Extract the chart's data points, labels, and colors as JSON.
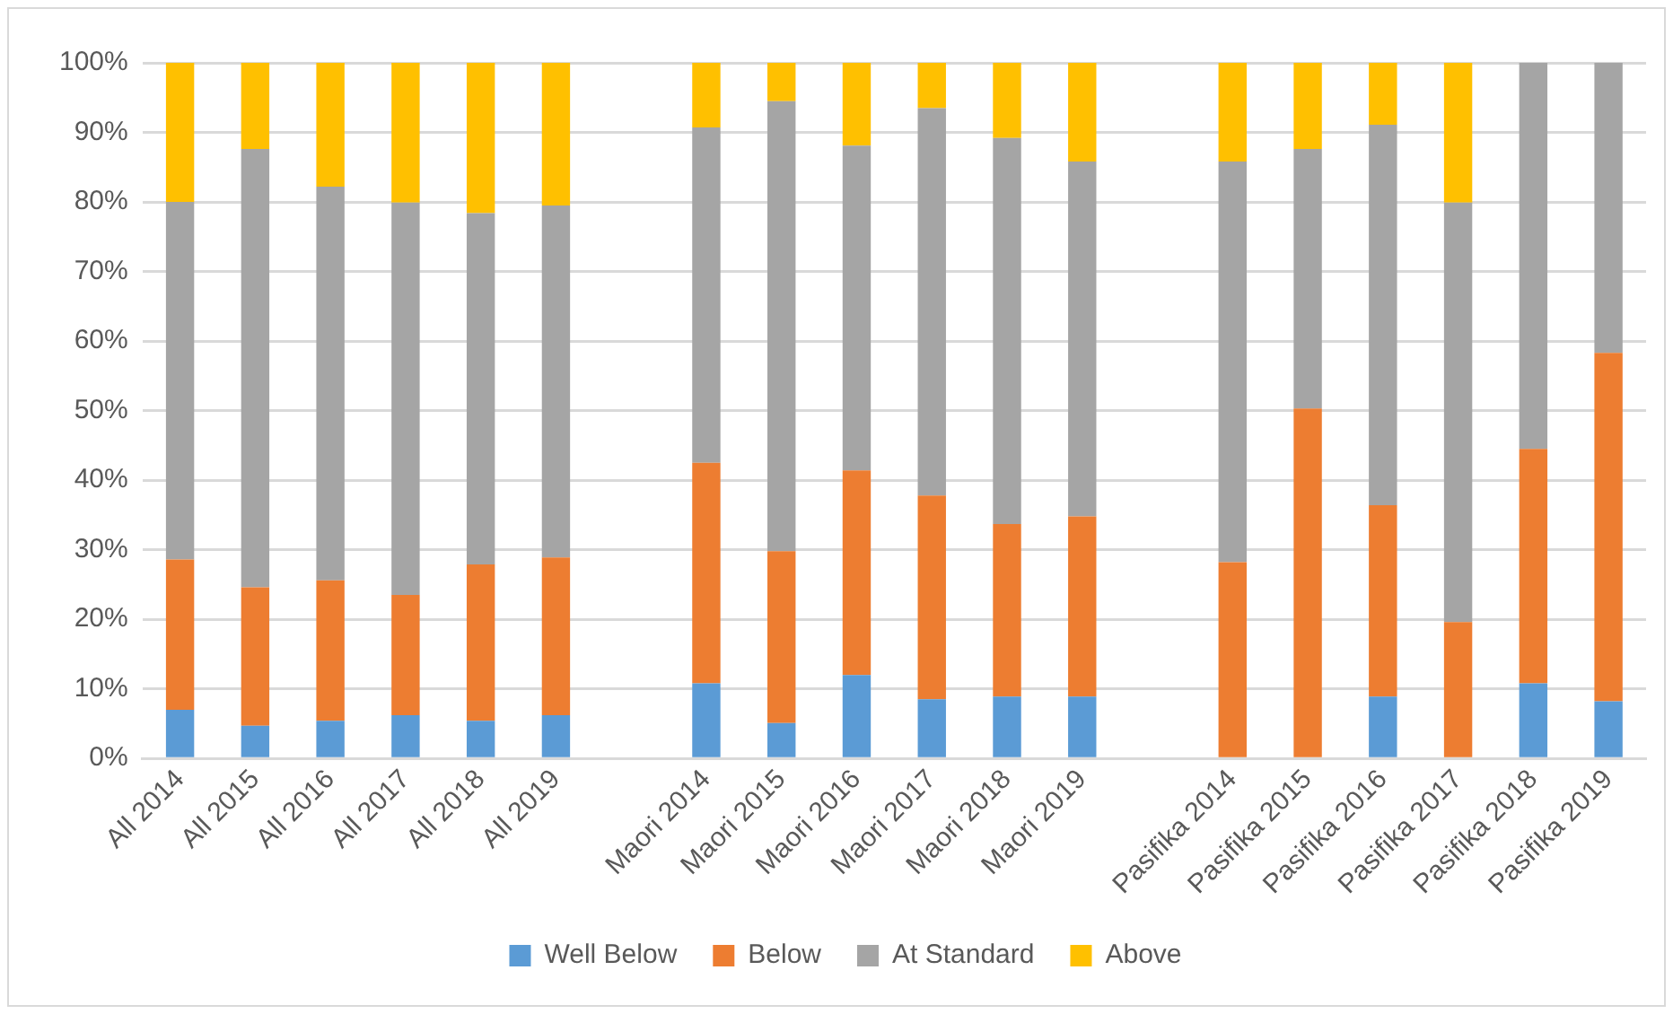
{
  "chart_data": {
    "type": "bar",
    "stacked": true,
    "categories": [
      "All 2014",
      "All 2015",
      "All 2016",
      "All 2017",
      "All 2018",
      "All 2019",
      null,
      "Maori 2014",
      "Maori 2015",
      "Maori 2016",
      "Maori 2017",
      "Maori 2018",
      "Maori 2019",
      null,
      "Pasifika 2014",
      "Pasifika 2015",
      "Pasifika 2016",
      "Pasifika 2017",
      "Pasifika 2018",
      "Pasifika 2019"
    ],
    "series": [
      {
        "name": "Well Below",
        "color": "#5b9bd5",
        "values": [
          7.0,
          4.7,
          5.4,
          6.2,
          5.4,
          6.2,
          null,
          10.8,
          5.1,
          12.0,
          8.5,
          8.9,
          8.9,
          null,
          0,
          0,
          8.9,
          0,
          10.8,
          8.2
        ]
      },
      {
        "name": "Below",
        "color": "#ed7d31",
        "values": [
          21.6,
          19.9,
          20.2,
          17.3,
          22.5,
          22.7,
          null,
          31.7,
          24.7,
          29.4,
          29.3,
          24.8,
          25.9,
          null,
          28.2,
          50.3,
          27.5,
          19.6,
          33.7,
          50.1
        ]
      },
      {
        "name": "At Standard",
        "color": "#a5a5a5",
        "values": [
          51.4,
          63.0,
          56.6,
          56.4,
          50.5,
          50.6,
          null,
          48.2,
          64.7,
          46.7,
          55.7,
          55.5,
          51.0,
          null,
          57.6,
          37.3,
          54.7,
          60.3,
          55.5,
          41.7
        ]
      },
      {
        "name": "Above",
        "color": "#ffc000",
        "values": [
          20.0,
          12.4,
          17.8,
          20.1,
          21.6,
          20.5,
          null,
          9.3,
          5.5,
          11.9,
          6.5,
          10.8,
          14.2,
          null,
          14.2,
          12.4,
          8.9,
          20.1,
          0,
          0
        ]
      }
    ],
    "ylim": [
      0,
      100
    ],
    "yticks": [
      {
        "value": 0,
        "label": "0%"
      },
      {
        "value": 10,
        "label": "10%"
      },
      {
        "value": 20,
        "label": "20%"
      },
      {
        "value": 30,
        "label": "30%"
      },
      {
        "value": 40,
        "label": "40%"
      },
      {
        "value": 50,
        "label": "50%"
      },
      {
        "value": 60,
        "label": "60%"
      },
      {
        "value": 70,
        "label": "70%"
      },
      {
        "value": 80,
        "label": "80%"
      },
      {
        "value": 90,
        "label": "90%"
      },
      {
        "value": 100,
        "label": "100%"
      }
    ],
    "grid": "y",
    "legend": "bottom"
  }
}
